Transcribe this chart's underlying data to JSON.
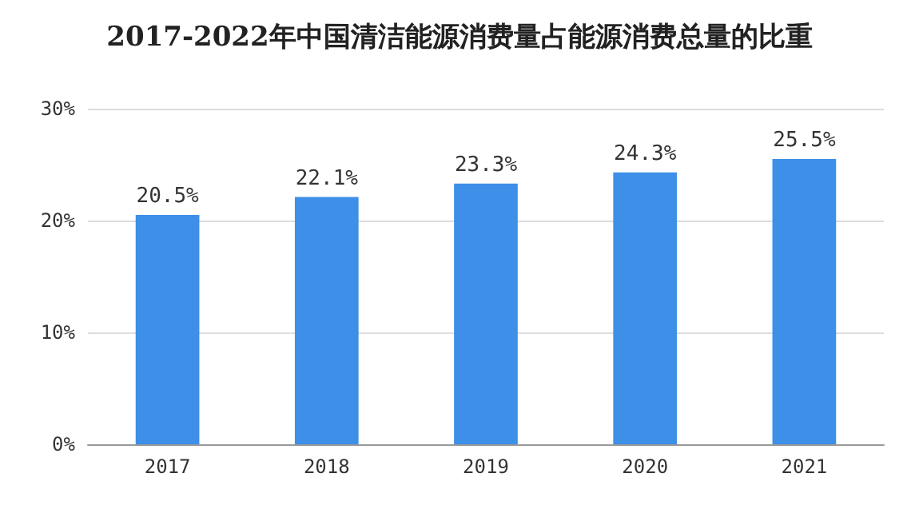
{
  "chart_data": {
    "type": "bar",
    "title": "2017-2022年中国清洁能源消费量占能源消费总量的比重",
    "categories": [
      "2017",
      "2018",
      "2019",
      "2020",
      "2021"
    ],
    "values": [
      20.5,
      22.1,
      23.3,
      24.3,
      25.5
    ],
    "value_labels": [
      "20.5%",
      "22.1%",
      "23.3%",
      "24.3%",
      "25.5%"
    ],
    "color": "#3d8fe8",
    "ylim": [
      0,
      30
    ],
    "yticks": [
      {
        "value": 0,
        "label": "0%"
      },
      {
        "value": 10,
        "label": "10%"
      },
      {
        "value": 20,
        "label": "20%"
      },
      {
        "value": 30,
        "label": "30%"
      }
    ],
    "grid": "y"
  }
}
